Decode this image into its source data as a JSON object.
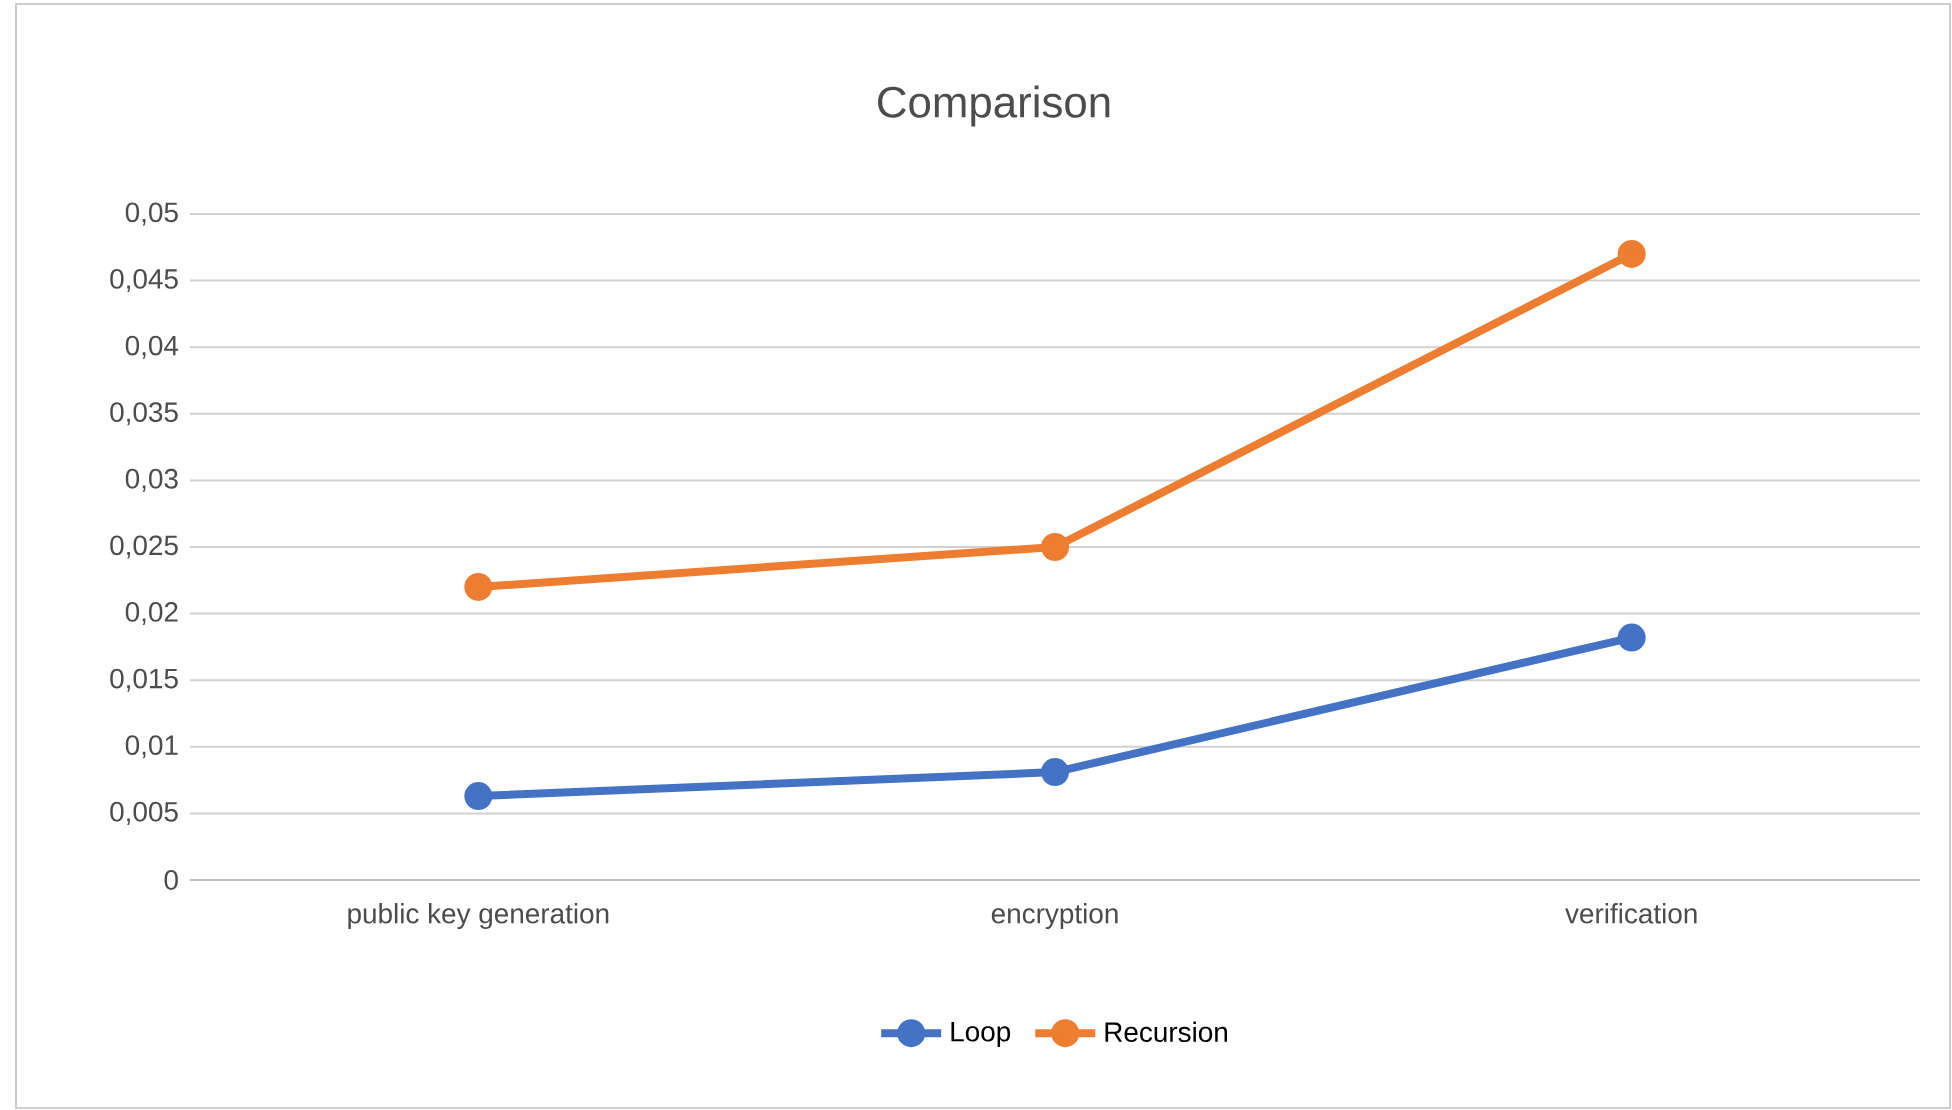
{
  "chart_data": {
    "type": "line",
    "title": "Comparison",
    "categories": [
      "public key generation",
      "encryption",
      "verification"
    ],
    "series": [
      {
        "name": "Loop",
        "color": "#4472c4",
        "values": [
          0.0063,
          0.0081,
          0.0182
        ]
      },
      {
        "name": "Recursion",
        "color": "#ed7d31",
        "values": [
          0.022,
          0.025,
          0.047
        ]
      }
    ],
    "ylim": [
      0,
      0.05
    ],
    "yticks": [
      {
        "value": 0,
        "label": "0"
      },
      {
        "value": 0.005,
        "label": "0,005"
      },
      {
        "value": 0.01,
        "label": "0,01"
      },
      {
        "value": 0.015,
        "label": "0,015"
      },
      {
        "value": 0.02,
        "label": "0,02"
      },
      {
        "value": 0.025,
        "label": "0,025"
      },
      {
        "value": 0.03,
        "label": "0,03"
      },
      {
        "value": 0.035,
        "label": "0,035"
      },
      {
        "value": 0.04,
        "label": "0,04"
      },
      {
        "value": 0.045,
        "label": "0,045"
      },
      {
        "value": 0.05,
        "label": "0,05"
      }
    ],
    "grid": "y",
    "legend": "bottom",
    "marker": "circle",
    "line_style": "solid"
  }
}
